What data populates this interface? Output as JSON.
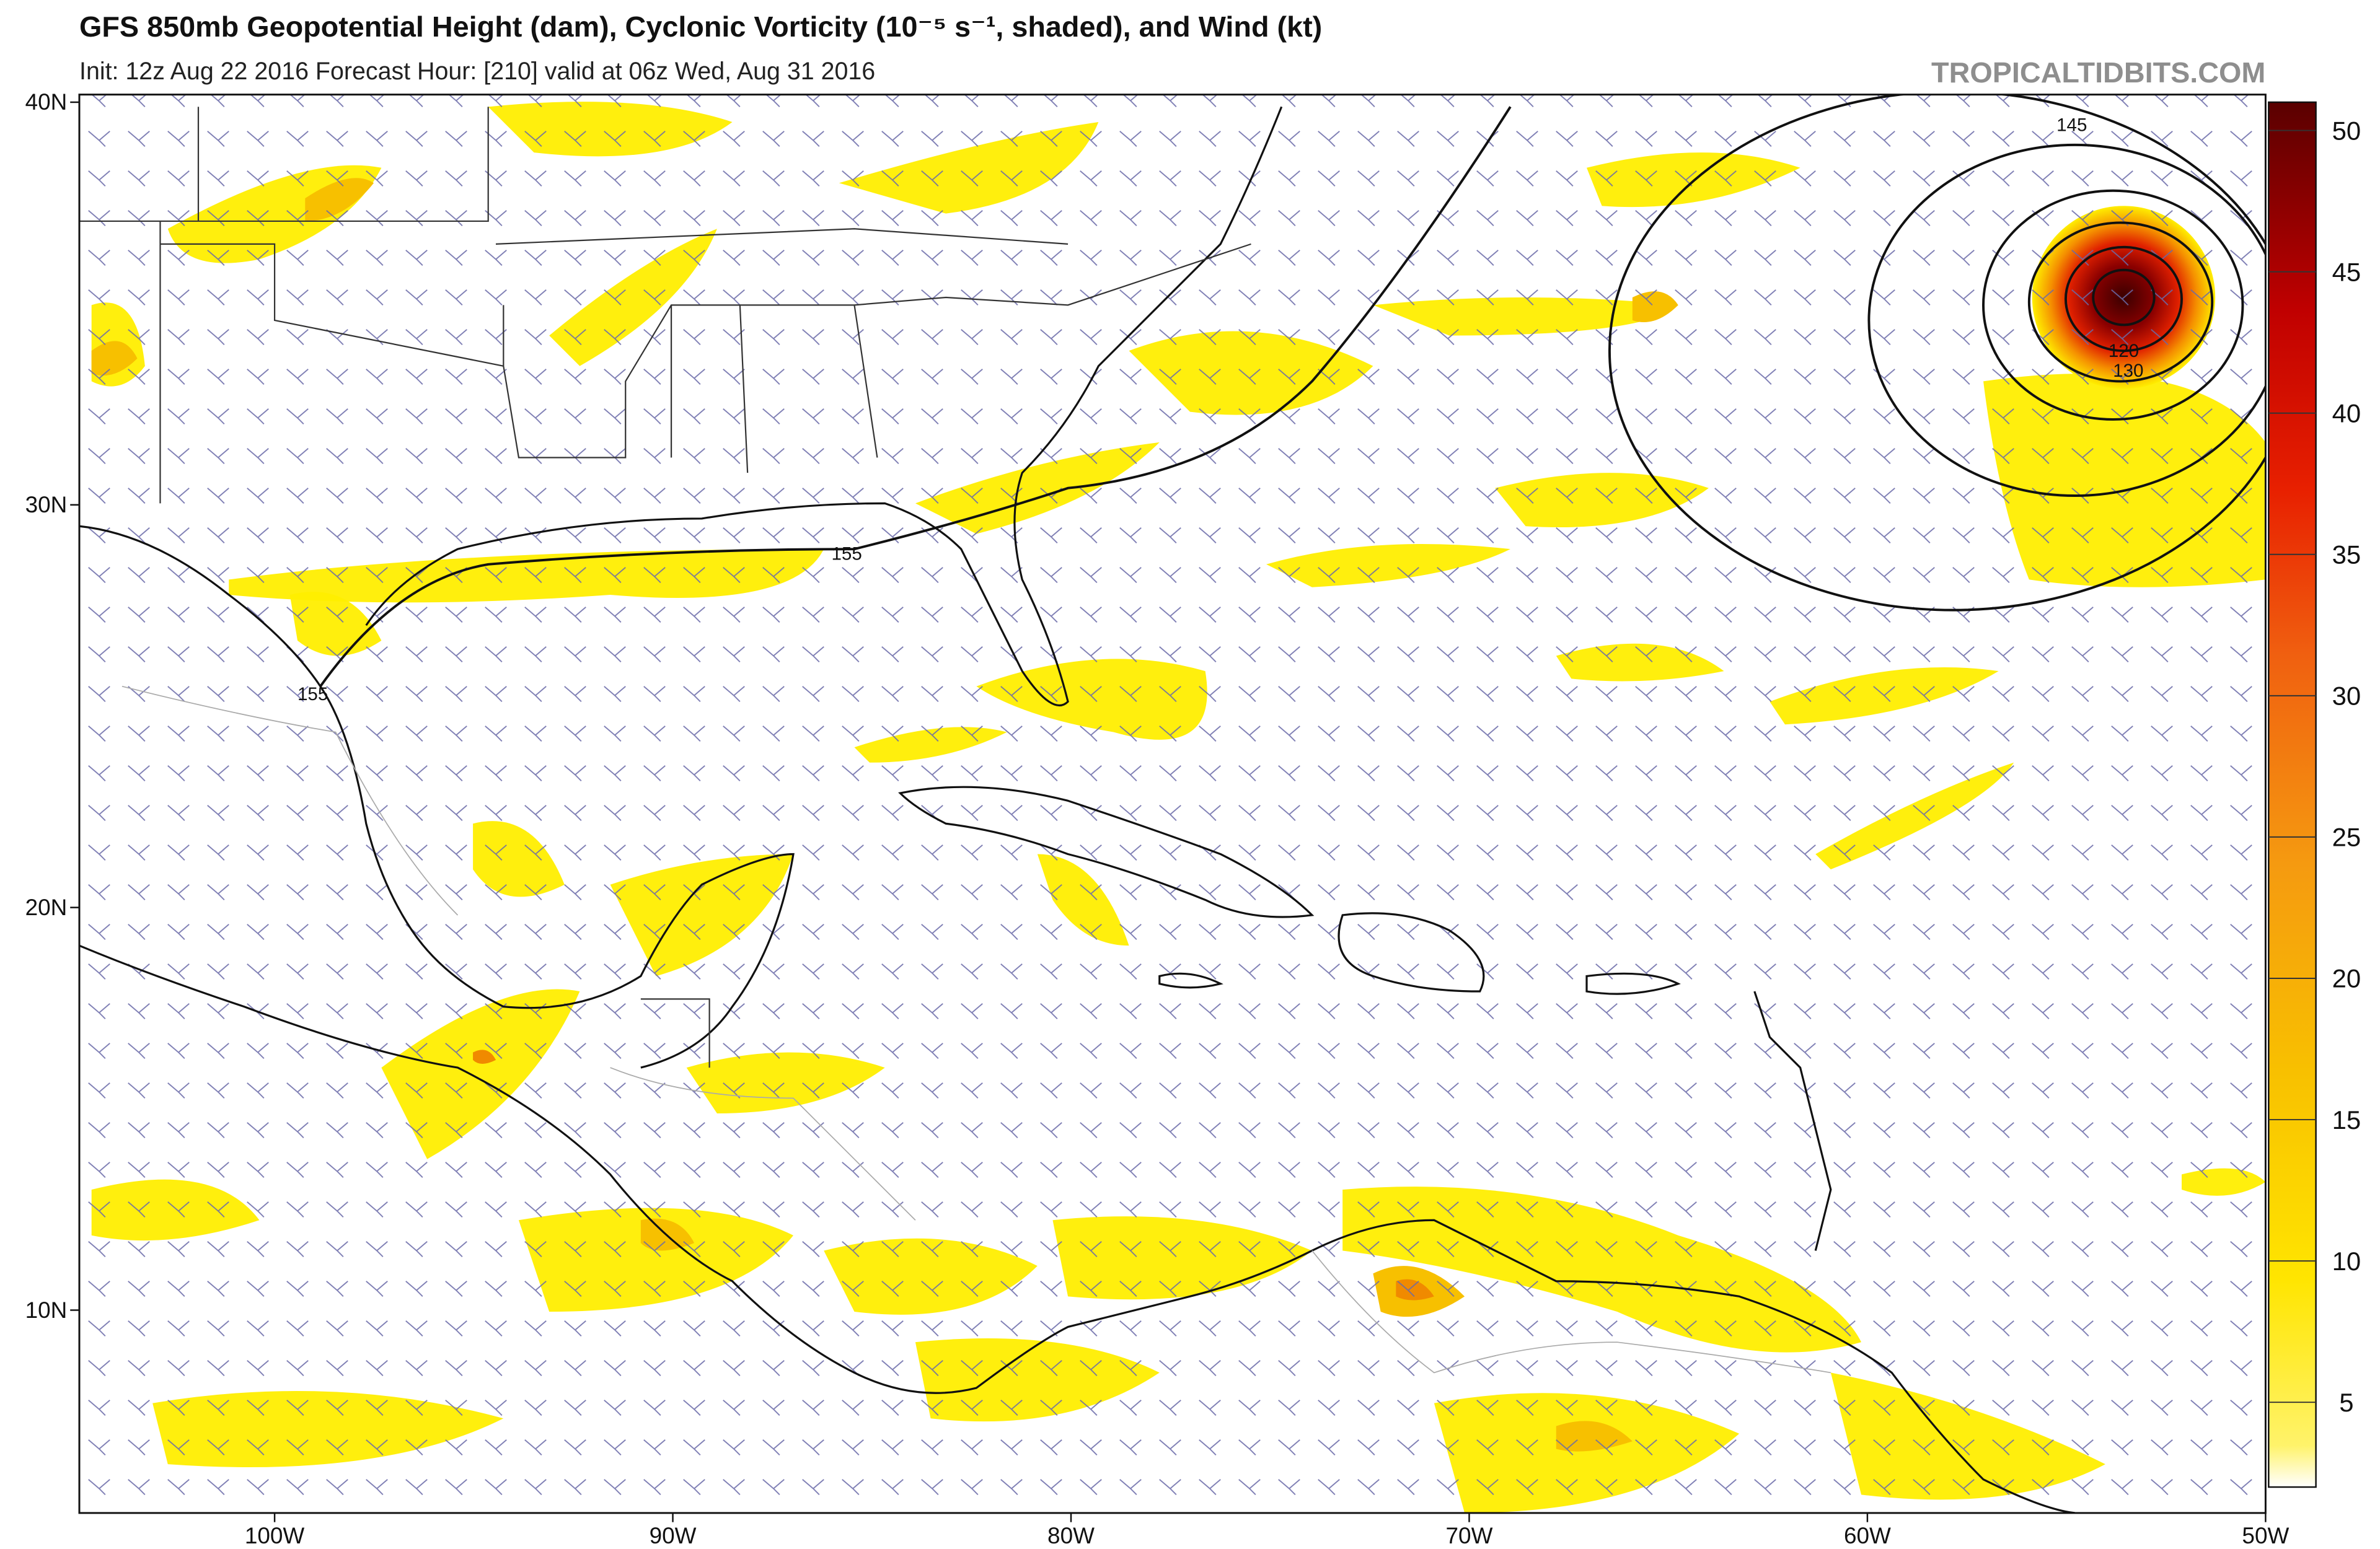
{
  "header": {
    "title": "GFS 850mb Geopotential Height (dam), Cyclonic Vorticity (10⁻⁵ s⁻¹, shaded), and Wind (kt)",
    "subtitle": "Init: 12z Aug 22 2016   Forecast Hour: [210]   valid at 06z Wed, Aug 31 2016",
    "watermark": "TROPICALTIDBITS.COM"
  },
  "map": {
    "lat_labels": [
      "40N",
      "30N",
      "20N",
      "10N"
    ],
    "lon_labels": [
      "100W",
      "90W",
      "80W",
      "70W",
      "60W",
      "50W"
    ],
    "contour_labels": [
      {
        "text": "145"
      },
      {
        "text": "155"
      },
      {
        "text": "155"
      },
      {
        "text": "120"
      },
      {
        "text": "130"
      }
    ]
  },
  "colorbar": {
    "lim": [
      2,
      51
    ],
    "ticks": [
      5,
      10,
      15,
      20,
      25,
      30,
      35,
      40,
      45,
      50
    ]
  }
}
